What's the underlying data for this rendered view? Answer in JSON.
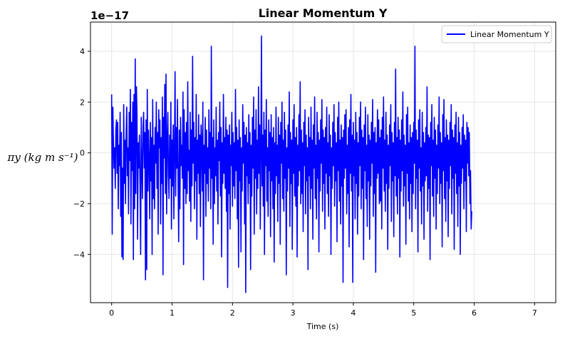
{
  "chart_data": {
    "type": "line",
    "title": "Linear Momentum Y",
    "xlabel": "Time (s)",
    "ylabel": "πy (kg m s⁻¹)",
    "y_offset_label": "1e−17",
    "xlim": [
      -0.35,
      7.35
    ],
    "ylim": [
      -5.9,
      5.15
    ],
    "x_ticks": [
      0,
      1,
      2,
      3,
      4,
      5,
      6,
      7
    ],
    "x_tick_labels": [
      "0",
      "1",
      "2",
      "3",
      "4",
      "5",
      "6",
      "7"
    ],
    "y_ticks": [
      -4,
      -2,
      0,
      2,
      4
    ],
    "y_tick_labels": [
      "−4",
      "−2",
      "0",
      "2",
      "4"
    ],
    "grid": true,
    "legend_position": "top-right",
    "series": [
      {
        "name": "Linear Momentum Y",
        "color": "#0000ff",
        "x_start": 0.0,
        "x_step": 0.01,
        "y": [
          2.3,
          -3.2,
          1.8,
          0.4,
          -0.6,
          0.2,
          -1.4,
          0.9,
          1.3,
          -0.8,
          1.2,
          -2.2,
          0.3,
          -0.5,
          1.6,
          -2.5,
          0.8,
          -4.1,
          -0.6,
          -4.2,
          1.9,
          -1.2,
          0.5,
          -2.0,
          0.7,
          1.8,
          -0.9,
          0.2,
          -2.4,
          1.6,
          -0.3,
          2.5,
          -2.8,
          1.2,
          -0.7,
          2.0,
          -4.2,
          2.3,
          -2.2,
          3.7,
          -1.6,
          2.6,
          1.5,
          -3.4,
          0.4,
          -0.6,
          0.7,
          -1.2,
          -4.0,
          1.4,
          -0.5,
          -1.8,
          1.0,
          1.6,
          -0.6,
          0.8,
          -5.0,
          1.3,
          -4.6,
          2.5,
          -1.5,
          0.9,
          -0.3,
          -2.6,
          1.2,
          -1.1,
          0.6,
          -4.0,
          2.1,
          -1.8,
          0.3,
          -2.2,
          1.0,
          -0.4,
          2.0,
          -1.4,
          0.8,
          -3.2,
          1.7,
          0.2,
          1.3,
          -2.8,
          0.6,
          -1.2,
          2.2,
          -4.8,
          1.4,
          -0.2,
          2.7,
          -1.6,
          3.1,
          -2.4,
          0.4,
          1.6,
          -0.9,
          -1.8,
          0.7,
          -1.0,
          2.0,
          -3.0,
          0.5,
          -1.3,
          1.1,
          -2.6,
          0.2,
          3.2,
          -1.7,
          1.0,
          -0.6,
          2.1,
          -1.3,
          -3.5,
          0.9,
          -2.2,
          1.4,
          -0.5,
          0.3,
          -1.0,
          2.4,
          -4.4,
          1.7,
          -1.4,
          0.8,
          -2.0,
          1.2,
          -1.6,
          2.8,
          -0.7,
          0.1,
          -1.9,
          1.6,
          -2.7,
          0.9,
          -1.3,
          3.8,
          -0.4,
          1.2,
          -2.2,
          0.6,
          -1.1,
          2.3,
          -3.4,
          0.5,
          -0.8,
          1.5,
          -1.6,
          0.7,
          -2.9,
          1.1,
          0.4,
          -1.5,
          2.0,
          -5.0,
          0.3,
          -0.8,
          1.4,
          -2.5,
          0.9,
          -1.2,
          0.2,
          -1.9,
          1.7,
          -0.6,
          0.8,
          -2.2,
          4.2,
          -1.0,
          0.6,
          -3.6,
          1.3,
          -2.0,
          0.2,
          -0.9,
          1.8,
          -1.5,
          0.5,
          -2.8,
          0.8,
          -0.3,
          2.0,
          -1.7,
          1.0,
          -4.1,
          0.4,
          -1.2,
          2.3,
          -0.8,
          0.6,
          -1.4,
          1.4,
          -2.3,
          0.9,
          -5.3,
          0.7,
          -1.6,
          1.1,
          -3.0,
          0.3,
          -0.5,
          1.6,
          -2.1,
          0.8,
          -1.3,
          0.4,
          -1.8,
          2.5,
          -0.7,
          1.0,
          -2.6,
          0.5,
          -4.5,
          1.3,
          -1.1,
          0.6,
          -3.9,
          0.2,
          -1.5,
          1.9,
          -0.4,
          1.2,
          -2.8,
          0.7,
          -5.5,
          1.0,
          -0.9,
          0.4,
          -2.0,
          1.5,
          -1.2,
          0.8,
          -4.6,
          0.3,
          -1.7,
          1.4,
          -0.6,
          2.2,
          -3.2,
          0.9,
          -1.0,
          1.7,
          -2.4,
          0.5,
          -1.4,
          2.6,
          -0.8,
          1.1,
          -3.0,
          0.4,
          4.6,
          -1.3,
          0.7,
          -2.1,
          1.6,
          -4.0,
          0.9,
          -0.5,
          2.1,
          -1.9,
          0.2,
          -2.5,
          1.3,
          -0.7,
          0.8,
          -3.3,
          1.5,
          -1.1,
          0.6,
          -2.2,
          1.0,
          -4.3,
          0.4,
          -1.6,
          1.8,
          -0.9,
          0.3,
          -2.7,
          1.4,
          -1.2,
          0.7,
          -3.6,
          1.2,
          -0.4,
          2.0,
          -1.8,
          0.5,
          -2.3,
          1.6,
          -1.0,
          0.9,
          -4.8,
          0.2,
          -1.5,
          1.1,
          -0.6,
          2.4,
          -2.9,
          0.8,
          -1.2,
          0.5,
          -3.8,
          1.3,
          -0.8,
          1.9,
          -1.7,
          0.6,
          -2.1,
          1.0,
          -4.1,
          0.3,
          -1.3,
          1.5,
          -0.7,
          2.8,
          -2.0,
          0.9,
          -1.6,
          0.4,
          -3.1,
          1.2,
          -0.5,
          1.7,
          -2.4,
          0.7,
          -1.1,
          0.2,
          -4.6,
          1.4,
          -0.9,
          0.6,
          -2.2,
          1.8,
          -1.4,
          0.5,
          -3.4,
          1.1,
          -0.6,
          2.2,
          -1.8,
          0.3,
          -2.6,
          1.6,
          -1.0,
          0.8,
          -3.9,
          0.5,
          -1.5,
          1.3,
          -0.4,
          2.1,
          -2.3,
          0.9,
          -1.2,
          0.6,
          -3.0,
          1.0,
          -0.8,
          1.8,
          -1.6,
          0.4,
          -2.5,
          1.5,
          -0.9,
          0.7,
          -4.0,
          0.2,
          -1.4,
          1.2,
          -0.5,
          1.9,
          -2.1,
          0.8,
          -1.1,
          0.4,
          -3.5,
          1.4,
          -0.7,
          2.0,
          -1.9,
          0.5,
          -2.8,
          1.1,
          -1.3,
          0.6,
          -5.1,
          0.9,
          -1.0,
          1.5,
          -0.6,
          1.7,
          -2.4,
          0.3,
          -1.6,
          1.0,
          -3.7,
          1.3,
          -0.8,
          2.3,
          -1.5,
          0.7,
          -5.1,
          1.2,
          -0.9,
          0.5,
          -2.6,
          1.6,
          -1.2,
          0.8,
          -3.2,
          0.4,
          -1.7,
          1.4,
          -0.5,
          2.0,
          -2.2,
          0.9,
          -1.4,
          0.6,
          -4.2,
          1.1,
          -0.7,
          1.8,
          -1.8,
          0.3,
          -2.9,
          1.5,
          -1.1,
          0.7,
          -3.4,
          0.5,
          -1.3,
          1.2,
          -0.4,
          2.1,
          -2.5,
          0.8,
          -1.6,
          1.0,
          -4.7,
          0.4,
          -1.0,
          1.7,
          -0.8,
          1.3,
          -2.0,
          0.6,
          -1.9,
          0.9,
          -3.0,
          1.4,
          -0.6,
          2.2,
          -1.5,
          0.5,
          -2.3,
          1.6,
          -1.2,
          0.7,
          -3.8,
          0.3,
          -1.4,
          1.1,
          -0.5,
          1.9,
          -2.7,
          0.8,
          -1.1,
          0.4,
          -3.3,
          1.2,
          -0.9,
          3.3,
          -1.7,
          0.6,
          -2.4,
          1.4,
          -1.0,
          0.9,
          -4.1,
          0.5,
          -1.5,
          1.3,
          -0.7,
          2.4,
          -2.1,
          0.7,
          -1.3,
          0.3,
          -3.6,
          1.5,
          -0.8,
          1.8,
          -1.9,
          0.4,
          -2.6,
          1.1,
          -1.2,
          0.6,
          -3.1,
          0.8,
          -1.6,
          1.2,
          -0.4,
          4.2,
          -2.2,
          0.9,
          -1.0,
          0.5,
          -3.9,
          1.3,
          -0.6,
          1.7,
          -1.5,
          0.2,
          -2.8,
          1.6,
          -1.3,
          0.8,
          -3.4,
          0.4,
          -1.1,
          1.0,
          -0.9,
          2.6,
          -2.3,
          0.7,
          -1.4,
          0.6,
          -4.2,
          1.2,
          -0.5,
          1.9,
          -1.7,
          0.5,
          -2.5,
          1.4,
          -1.0,
          0.9,
          -3.0,
          0.3,
          -1.6,
          1.1,
          -0.6,
          2.2,
          -2.0,
          0.8,
          -1.2,
          0.4,
          -3.7,
          1.5,
          -0.7,
          2.1,
          -1.8,
          0.6,
          -2.7,
          1.3,
          -1.1,
          0.7,
          -3.3,
          0.5,
          -1.4,
          1.2,
          -0.5,
          1.9,
          -2.4,
          0.9,
          -1.0,
          0.6,
          -3.8,
          1.1,
          -0.8,
          1.6,
          -1.6,
          0.4,
          -2.9,
          1.4,
          -1.3,
          0.8,
          -4.0,
          0.3,
          -1.2,
          1.0,
          -0.6,
          1.5,
          -2.2,
          0.7,
          -1.1,
          0.5,
          -3.1,
          1.2,
          -0.4,
          1.0,
          -0.9,
          0.8,
          -2.0,
          -0.7,
          -3.0,
          -2.3
        ]
      }
    ]
  }
}
